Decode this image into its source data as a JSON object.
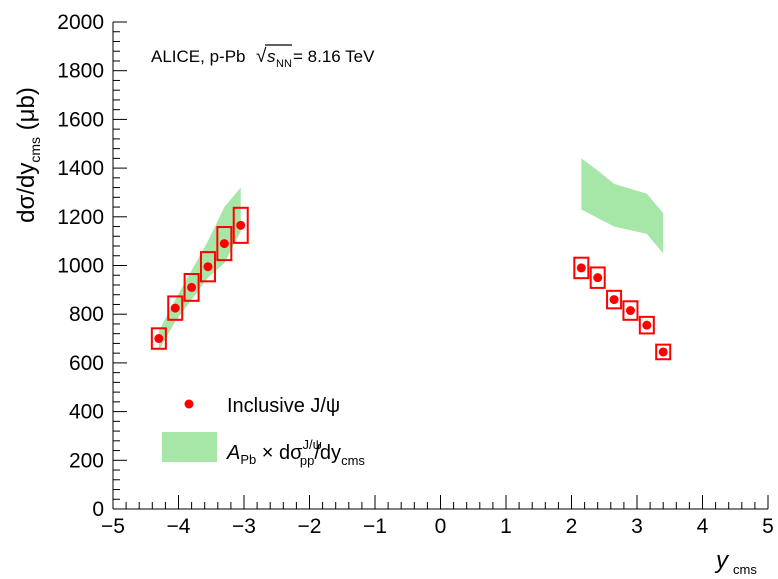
{
  "chart_data": {
    "type": "scatter",
    "annotation": {
      "prefix": "ALICE, p-Pb ",
      "sqrt_symbol": "√",
      "s": "s",
      "s_sub": "NN",
      "suffix": " = 8.16 TeV"
    },
    "xlabel": {
      "main": "y",
      "sub": "cms"
    },
    "ylabel": {
      "main": "dσ/dy",
      "sub": "cms",
      "unit": " (μb)"
    },
    "xlim": [
      -5,
      5
    ],
    "ylim": [
      0,
      2000
    ],
    "xticks": [
      "−5",
      "−4",
      "−3",
      "−2",
      "−1",
      "0",
      "1",
      "2",
      "3",
      "4",
      "5"
    ],
    "yticks": [
      "0",
      "200",
      "400",
      "600",
      "800",
      "1000",
      "1200",
      "1400",
      "1600",
      "1800",
      "2000"
    ],
    "legend": {
      "placement": "bottom-left",
      "points_label": "Inclusive J/ψ",
      "band_label": {
        "A": "A",
        "A_sub": "Pb",
        "times": " × dσ",
        "sup": "J/ψ",
        "pp": "pp",
        "rest": "/dy",
        "cms": "cms"
      }
    },
    "colors": {
      "points": "#ff0000",
      "band": "#a6e6a6"
    },
    "series": [
      {
        "name": "Inclusive J/ψ",
        "x": [
          -4.3,
          -4.05,
          -3.8,
          -3.55,
          -3.3,
          -3.05,
          2.15,
          2.4,
          2.65,
          2.9,
          3.15,
          3.4
        ],
        "y": [
          700,
          825,
          910,
          995,
          1090,
          1165,
          990,
          950,
          860,
          815,
          755,
          645
        ],
        "syst": [
          42,
          48,
          55,
          60,
          68,
          72,
          42,
          42,
          36,
          38,
          34,
          30
        ]
      }
    ],
    "band": [
      {
        "x": [
          -4.3,
          -4.05,
          -3.8,
          -3.55,
          -3.3,
          -3.05
        ],
        "y_low": [
          650,
          770,
          860,
          950,
          1010,
          1140
        ],
        "y_high": [
          730,
          860,
          980,
          1100,
          1240,
          1320
        ]
      },
      {
        "x": [
          2.15,
          2.4,
          2.65,
          2.9,
          3.15,
          3.4
        ],
        "y_low": [
          1230,
          1195,
          1160,
          1145,
          1130,
          1050
        ],
        "y_high": [
          1440,
          1390,
          1335,
          1315,
          1295,
          1215
        ]
      }
    ]
  }
}
